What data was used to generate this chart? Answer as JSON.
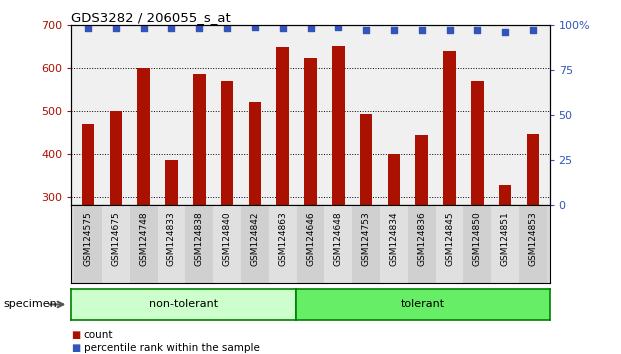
{
  "title": "GDS3282 / 206055_s_at",
  "categories": [
    "GSM124575",
    "GSM124675",
    "GSM124748",
    "GSM124833",
    "GSM124838",
    "GSM124840",
    "GSM124842",
    "GSM124863",
    "GSM124646",
    "GSM124648",
    "GSM124753",
    "GSM124834",
    "GSM124836",
    "GSM124845",
    "GSM124850",
    "GSM124851",
    "GSM124853"
  ],
  "counts": [
    470,
    500,
    600,
    385,
    585,
    570,
    520,
    648,
    622,
    650,
    492,
    400,
    443,
    638,
    570,
    328,
    447
  ],
  "percentiles": [
    98,
    98,
    98,
    98,
    98,
    98,
    99,
    98,
    98,
    99,
    97,
    97,
    97,
    97,
    97,
    96,
    97
  ],
  "bar_color": "#AA1100",
  "dot_color": "#3355BB",
  "ylim_left": [
    280,
    700
  ],
  "ylim_right": [
    0,
    100
  ],
  "yticks_left": [
    300,
    400,
    500,
    600,
    700
  ],
  "yticks_right": [
    0,
    25,
    50,
    75,
    100
  ],
  "plot_bg": "#f0f0f0",
  "non_tolerant_count": 8,
  "tolerant_count": 9,
  "group_label_non": "non-tolerant",
  "group_label_tol": "tolerant",
  "specimen_label": "specimen",
  "legend_count": "count",
  "legend_percentile": "percentile rank within the sample",
  "non_tolerant_color": "#ccffcc",
  "tolerant_color": "#66ee66",
  "bar_bottom": 280
}
